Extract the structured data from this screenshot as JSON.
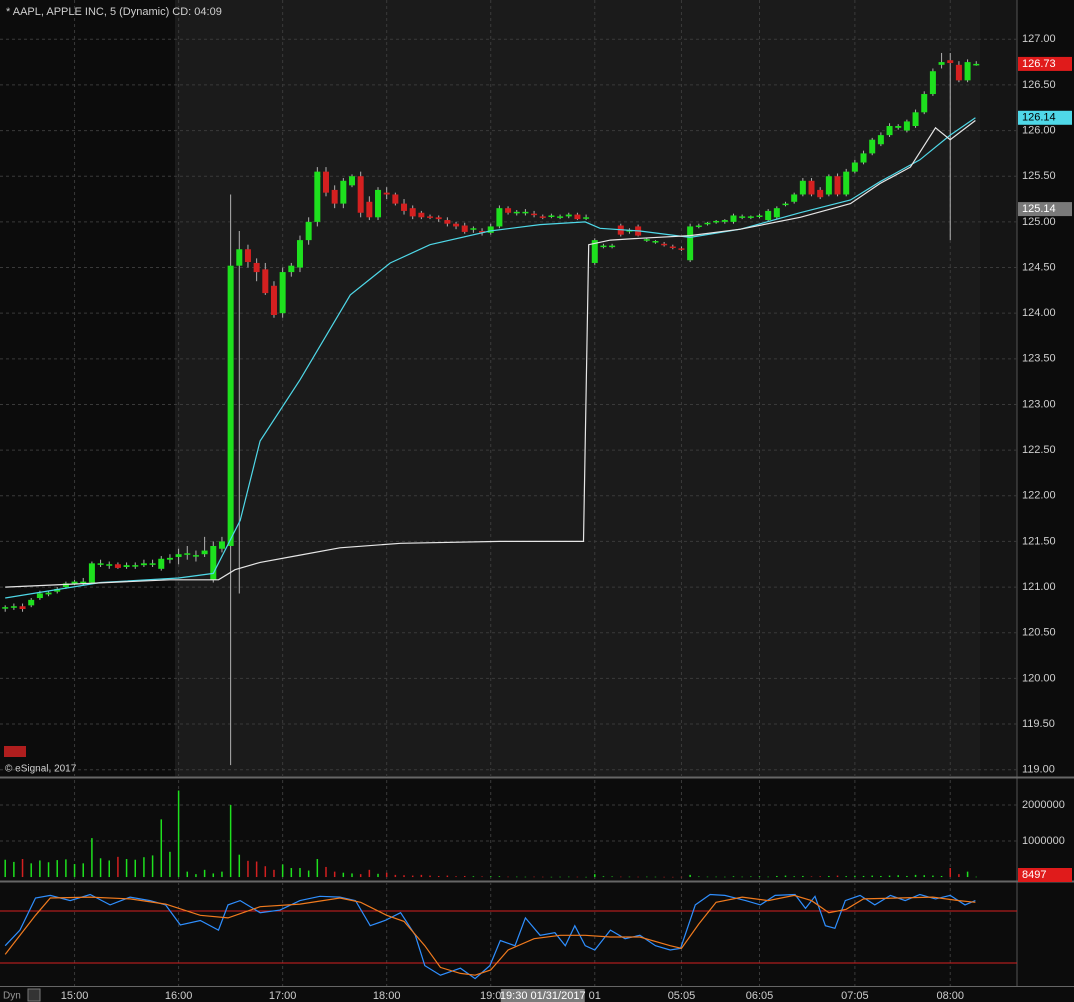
{
  "chart_data": {
    "type": "candlestick",
    "title": "* AAPL, APPLE INC, 5 (Dynamic) CD: 04:09",
    "source": "© eSignal, 2017",
    "mode_label": "Dyn",
    "xlim": [
      -0.6,
      116.7
    ],
    "xticks": [
      {
        "value": 8,
        "label": "15:00"
      },
      {
        "value": 20,
        "label": "16:00"
      },
      {
        "value": 32,
        "label": "17:00"
      },
      {
        "value": 44,
        "label": "18:00"
      },
      {
        "value": 56,
        "label": "19:0"
      },
      {
        "value": 68,
        "label": "01"
      },
      {
        "value": 78,
        "label": "05:05"
      },
      {
        "value": 87,
        "label": "06:05"
      },
      {
        "value": 98,
        "label": "07:05"
      },
      {
        "value": 109,
        "label": "08:00"
      }
    ],
    "cursor_label": {
      "value": 62,
      "label": "19:30 01/31/2017"
    },
    "ylim": [
      118.92,
      127.43
    ],
    "yticks": [
      {
        "value": 119,
        "label": "119.00"
      },
      {
        "value": 119.5,
        "label": "119.50"
      },
      {
        "value": 120,
        "label": "120.00"
      },
      {
        "value": 120.5,
        "label": "120.50"
      },
      {
        "value": 121,
        "label": "121.00"
      },
      {
        "value": 121.5,
        "label": "121.50"
      },
      {
        "value": 122,
        "label": "122.00"
      },
      {
        "value": 122.5,
        "label": "122.50"
      },
      {
        "value": 123,
        "label": "123.00"
      },
      {
        "value": 123.5,
        "label": "123.50"
      },
      {
        "value": 124,
        "label": "124.00"
      },
      {
        "value": 124.5,
        "label": "124.50"
      },
      {
        "value": 125,
        "label": "125.00"
      },
      {
        "value": 125.5,
        "label": "125.50"
      },
      {
        "value": 126,
        "label": "126.00"
      },
      {
        "value": 126.5,
        "label": "126.50"
      },
      {
        "value": 127,
        "label": "127.00"
      }
    ],
    "grid": true,
    "up_color": "#1ee01e",
    "down_color": "#d42020",
    "wick_color": "#b0b0b0",
    "candles": [
      [
        120.77,
        120.8,
        120.73,
        120.78
      ],
      [
        120.78,
        120.82,
        120.75,
        120.79
      ],
      [
        120.79,
        120.82,
        120.73,
        120.76
      ],
      [
        120.8,
        120.88,
        120.78,
        120.86
      ],
      [
        120.88,
        120.96,
        120.86,
        120.93
      ],
      [
        120.92,
        120.96,
        120.9,
        120.94
      ],
      [
        120.95,
        121.0,
        120.93,
        120.98
      ],
      [
        121.0,
        121.06,
        120.98,
        121.04
      ],
      [
        121.04,
        121.08,
        121.02,
        121.06
      ],
      [
        121.05,
        121.1,
        121.02,
        121.06
      ],
      [
        121.05,
        121.28,
        121.03,
        121.26
      ],
      [
        121.25,
        121.3,
        121.22,
        121.26
      ],
      [
        121.24,
        121.28,
        121.2,
        121.25
      ],
      [
        121.25,
        121.27,
        121.2,
        121.21
      ],
      [
        121.22,
        121.27,
        121.2,
        121.24
      ],
      [
        121.23,
        121.27,
        121.2,
        121.24
      ],
      [
        121.24,
        121.3,
        121.22,
        121.26
      ],
      [
        121.25,
        121.3,
        121.22,
        121.26
      ],
      [
        121.2,
        121.34,
        121.18,
        121.31
      ],
      [
        121.3,
        121.36,
        121.26,
        121.32
      ],
      [
        121.33,
        121.42,
        121.25,
        121.36
      ],
      [
        121.36,
        121.45,
        121.3,
        121.37
      ],
      [
        121.34,
        121.4,
        121.28,
        121.35
      ],
      [
        121.36,
        121.55,
        121.33,
        121.4
      ],
      [
        121.08,
        121.5,
        121.05,
        121.45
      ],
      [
        121.42,
        121.55,
        121.38,
        121.5
      ],
      [
        121.45,
        125.3,
        119.05,
        124.52
      ],
      [
        124.52,
        124.9,
        120.93,
        124.7
      ],
      [
        124.7,
        124.75,
        124.5,
        124.56
      ],
      [
        124.55,
        124.6,
        124.35,
        124.45
      ],
      [
        124.48,
        124.55,
        124.2,
        124.22
      ],
      [
        124.3,
        124.35,
        123.95,
        123.98
      ],
      [
        124.0,
        124.5,
        123.95,
        124.45
      ],
      [
        124.45,
        124.55,
        124.4,
        124.52
      ],
      [
        124.5,
        124.85,
        124.45,
        124.8
      ],
      [
        124.8,
        125.05,
        124.75,
        125.0
      ],
      [
        125.0,
        125.6,
        124.95,
        125.55
      ],
      [
        125.55,
        125.6,
        125.28,
        125.32
      ],
      [
        125.35,
        125.4,
        125.15,
        125.2
      ],
      [
        125.2,
        125.48,
        125.15,
        125.45
      ],
      [
        125.4,
        125.52,
        125.38,
        125.5
      ],
      [
        125.5,
        125.55,
        125.05,
        125.1
      ],
      [
        125.22,
        125.28,
        125.02,
        125.05
      ],
      [
        125.05,
        125.38,
        125.02,
        125.35
      ],
      [
        125.32,
        125.38,
        125.25,
        125.3
      ],
      [
        125.3,
        125.32,
        125.18,
        125.2
      ],
      [
        125.2,
        125.25,
        125.08,
        125.12
      ],
      [
        125.15,
        125.18,
        125.03,
        125.06
      ],
      [
        125.1,
        125.12,
        125.03,
        125.05
      ],
      [
        125.06,
        125.08,
        125.03,
        125.05
      ],
      [
        125.05,
        125.07,
        125.0,
        125.03
      ],
      [
        125.02,
        125.05,
        124.95,
        124.98
      ],
      [
        124.98,
        125.0,
        124.92,
        124.95
      ],
      [
        124.96,
        124.99,
        124.87,
        124.89
      ],
      [
        124.92,
        124.95,
        124.88,
        124.93
      ],
      [
        124.9,
        124.93,
        124.85,
        124.88
      ],
      [
        124.88,
        124.98,
        124.86,
        124.95
      ],
      [
        124.95,
        125.18,
        124.93,
        125.15
      ],
      [
        125.15,
        125.17,
        125.08,
        125.1
      ],
      [
        125.1,
        125.13,
        125.07,
        125.11
      ],
      [
        125.1,
        125.14,
        125.07,
        125.11
      ],
      [
        125.09,
        125.12,
        125.05,
        125.08
      ],
      [
        125.06,
        125.08,
        125.03,
        125.05
      ],
      [
        125.06,
        125.09,
        125.04,
        125.07
      ],
      [
        125.05,
        125.08,
        125.03,
        125.06
      ],
      [
        125.06,
        125.1,
        125.04,
        125.08
      ],
      [
        125.08,
        125.1,
        125.02,
        125.03
      ],
      [
        125.04,
        125.08,
        125.02,
        125.05
      ],
      [
        124.55,
        124.82,
        124.53,
        124.8
      ],
      [
        124.73,
        124.76,
        124.71,
        124.74
      ],
      [
        124.73,
        124.76,
        124.71,
        124.74
      ],
      [
        124.96,
        124.98,
        124.84,
        124.86
      ],
      [
        124.9,
        124.93,
        124.87,
        124.91
      ],
      [
        124.95,
        124.97,
        124.84,
        124.85
      ],
      [
        124.8,
        124.82,
        124.78,
        124.81
      ],
      [
        124.78,
        124.8,
        124.76,
        124.79
      ],
      [
        124.76,
        124.78,
        124.73,
        124.75
      ],
      [
        124.73,
        124.75,
        124.7,
        124.72
      ],
      [
        124.71,
        124.73,
        124.68,
        124.7
      ],
      [
        124.58,
        124.98,
        124.56,
        124.95
      ],
      [
        124.95,
        124.98,
        124.93,
        124.96
      ],
      [
        124.98,
        125.0,
        124.96,
        124.99
      ],
      [
        125.0,
        125.02,
        124.98,
        125.01
      ],
      [
        125.0,
        125.03,
        124.98,
        125.02
      ],
      [
        125.0,
        125.09,
        124.98,
        125.07
      ],
      [
        125.05,
        125.08,
        125.03,
        125.06
      ],
      [
        125.05,
        125.07,
        125.03,
        125.06
      ],
      [
        125.06,
        125.09,
        125.04,
        125.07
      ],
      [
        125.02,
        125.14,
        125.0,
        125.12
      ],
      [
        125.05,
        125.17,
        125.03,
        125.15
      ],
      [
        125.19,
        125.22,
        125.17,
        125.2
      ],
      [
        125.22,
        125.32,
        125.2,
        125.3
      ],
      [
        125.3,
        125.48,
        125.28,
        125.45
      ],
      [
        125.45,
        125.48,
        125.28,
        125.3
      ],
      [
        125.35,
        125.38,
        125.25,
        125.27
      ],
      [
        125.3,
        125.52,
        125.28,
        125.5
      ],
      [
        125.5,
        125.53,
        125.28,
        125.3
      ],
      [
        125.3,
        125.58,
        125.28,
        125.55
      ],
      [
        125.55,
        125.68,
        125.53,
        125.65
      ],
      [
        125.65,
        125.78,
        125.63,
        125.75
      ],
      [
        125.75,
        125.92,
        125.73,
        125.9
      ],
      [
        125.85,
        125.98,
        125.83,
        125.95
      ],
      [
        125.95,
        126.08,
        125.93,
        126.05
      ],
      [
        126.03,
        126.07,
        126.01,
        126.05
      ],
      [
        126.0,
        126.12,
        125.98,
        126.1
      ],
      [
        126.05,
        126.23,
        126.03,
        126.2
      ],
      [
        126.2,
        126.43,
        126.18,
        126.4
      ],
      [
        126.4,
        126.68,
        126.38,
        126.65
      ],
      [
        126.72,
        126.85,
        126.68,
        126.75
      ],
      [
        126.77,
        126.85,
        124.8,
        126.74
      ],
      [
        126.72,
        126.76,
        126.53,
        126.55
      ],
      [
        126.55,
        126.78,
        126.53,
        126.75
      ],
      [
        126.73,
        126.76,
        126.71,
        126.73
      ]
    ],
    "moving_averages": [
      {
        "color": "#4fd8e8",
        "x": [
          0,
          11,
          20,
          24,
          27.1,
          29.4,
          34,
          39.8,
          44.4,
          49,
          55.9,
          61.7,
          66.9,
          68.6,
          73.2,
          79,
          84.8,
          91.7,
          97.5,
          100.9,
          105.5,
          109,
          111.9
        ],
        "values": [
          120.88,
          121.05,
          121.1,
          121.15,
          121.73,
          122.6,
          123.27,
          124.2,
          124.55,
          124.75,
          124.9,
          124.97,
          125.0,
          124.93,
          124.9,
          124.83,
          124.92,
          125.1,
          125.24,
          125.44,
          125.68,
          125.95,
          126.14
        ]
      },
      {
        "color": "#e6e6e6",
        "x": [
          0,
          19,
          24.6,
          26.5,
          29.4,
          34,
          38.6,
          45.6,
          57.1,
          66.7,
          67.3,
          69.8,
          73.2,
          79,
          84.8,
          91.7,
          97.5,
          100.9,
          104.4,
          107.3,
          109,
          111.9
        ],
        "values": [
          121.0,
          121.08,
          121.08,
          121.19,
          121.27,
          121.35,
          121.43,
          121.48,
          121.5,
          121.5,
          124.75,
          124.8,
          124.82,
          124.85,
          124.92,
          125.05,
          125.2,
          125.42,
          125.6,
          126.03,
          125.9,
          126.11
        ]
      }
    ],
    "price_markers": [
      {
        "value": 125.14,
        "color": "#7a7a7a"
      }
    ],
    "last_price_color": "#e01b1b",
    "volume": {
      "ylim": [
        -110000,
        2720000
      ],
      "yticks": [
        1000000,
        2000000
      ],
      "last_color": "#e01b1b",
      "values": [
        480000,
        420000,
        500000,
        380000,
        460000,
        410000,
        470000,
        490000,
        360000,
        380000,
        1080000,
        520000,
        460000,
        560000,
        500000,
        480000,
        550000,
        600000,
        1600000,
        700000,
        2400000,
        150000,
        80000,
        200000,
        100000,
        150000,
        2000000,
        620000,
        450000,
        430000,
        300000,
        200000,
        350000,
        250000,
        250000,
        180000,
        500000,
        280000,
        150000,
        120000,
        100000,
        80000,
        200000,
        90000,
        120000,
        60000,
        50000,
        40000,
        60000,
        40000,
        30000,
        40000,
        20000,
        30000,
        20000,
        15000,
        20000,
        20000,
        10000,
        10000,
        8000,
        10000,
        8000,
        6000,
        8000,
        10000,
        8000,
        5000,
        80000,
        20000,
        15000,
        10000,
        10000,
        8000,
        10000,
        8000,
        6000,
        5000,
        6000,
        60000,
        15000,
        10000,
        10000,
        8000,
        20000,
        10000,
        15000,
        20000,
        10000,
        30000,
        40000,
        20000,
        30000,
        15000,
        20000,
        30000,
        40000,
        25000,
        35000,
        30000,
        40000,
        30000,
        40000,
        50000,
        30000,
        60000,
        50000,
        40000,
        30000,
        250000,
        80000,
        150000,
        8497
      ]
    },
    "oscillator": {
      "ylim": [
        -6.5,
        112.3
      ],
      "levels": [
        80,
        20
      ],
      "level_color": "#d42020",
      "series": [
        {
          "color": "#2f8fff",
          "x": [
            0,
            1.7,
            3.5,
            5.2,
            7.5,
            9.8,
            12.1,
            14.4,
            16.7,
            18.5,
            20.2,
            22.5,
            24.6,
            25.7,
            27.1,
            29.4,
            31.7,
            34,
            36.3,
            38.6,
            40.4,
            42.1,
            43.8,
            45.6,
            47.3,
            48.4,
            50.2,
            52.5,
            54.2,
            55.9,
            57.1,
            58.8,
            60,
            61.7,
            63.4,
            64.6,
            65.7,
            66.9,
            68,
            69.8,
            71.5,
            73.2,
            75,
            76.7,
            77.9,
            79.6,
            81.3,
            83,
            85.4,
            87.1,
            88.8,
            91.1,
            92.3,
            93.4,
            94.6,
            95.7,
            96.9,
            98.6,
            100.3,
            102.1,
            103.8,
            105.5,
            107.3,
            109,
            110.7,
            111.9
          ],
          "values": [
            40,
            58,
            95,
            98,
            92,
            99,
            87,
            96,
            92,
            87,
            64,
            69,
            58,
            87,
            92,
            78,
            81,
            92,
            97,
            96,
            92,
            63,
            69,
            78,
            52,
            17,
            6,
            14,
            2,
            17,
            46,
            40,
            72,
            52,
            55,
            40,
            63,
            40,
            35,
            58,
            48,
            52,
            40,
            35,
            37,
            87,
            99,
            98,
            92,
            87,
            98,
            99,
            83,
            97,
            63,
            60,
            92,
            98,
            87,
            98,
            92,
            99,
            94,
            98,
            87,
            92
          ]
        },
        {
          "color": "#f07a1e",
          "x": [
            0,
            3.5,
            5.2,
            9.8,
            14.4,
            18.5,
            22.5,
            25.7,
            29.4,
            34,
            38.6,
            41,
            44,
            46,
            48.4,
            50.2,
            52.5,
            54.2,
            56,
            58,
            61,
            64,
            66.9,
            69.8,
            73.2,
            76.7,
            78,
            80,
            82,
            85,
            88,
            91,
            93,
            95,
            97,
            99,
            103,
            107,
            110,
            111.9
          ],
          "values": [
            30,
            75,
            95,
            96,
            94,
            88,
            75,
            72,
            85,
            88,
            95,
            90,
            75,
            68,
            40,
            15,
            8,
            6,
            12,
            35,
            48,
            52,
            52,
            50,
            50,
            40,
            37,
            65,
            90,
            96,
            92,
            98,
            92,
            78,
            82,
            94,
            95,
            96,
            92,
            90
          ]
        }
      ]
    }
  }
}
